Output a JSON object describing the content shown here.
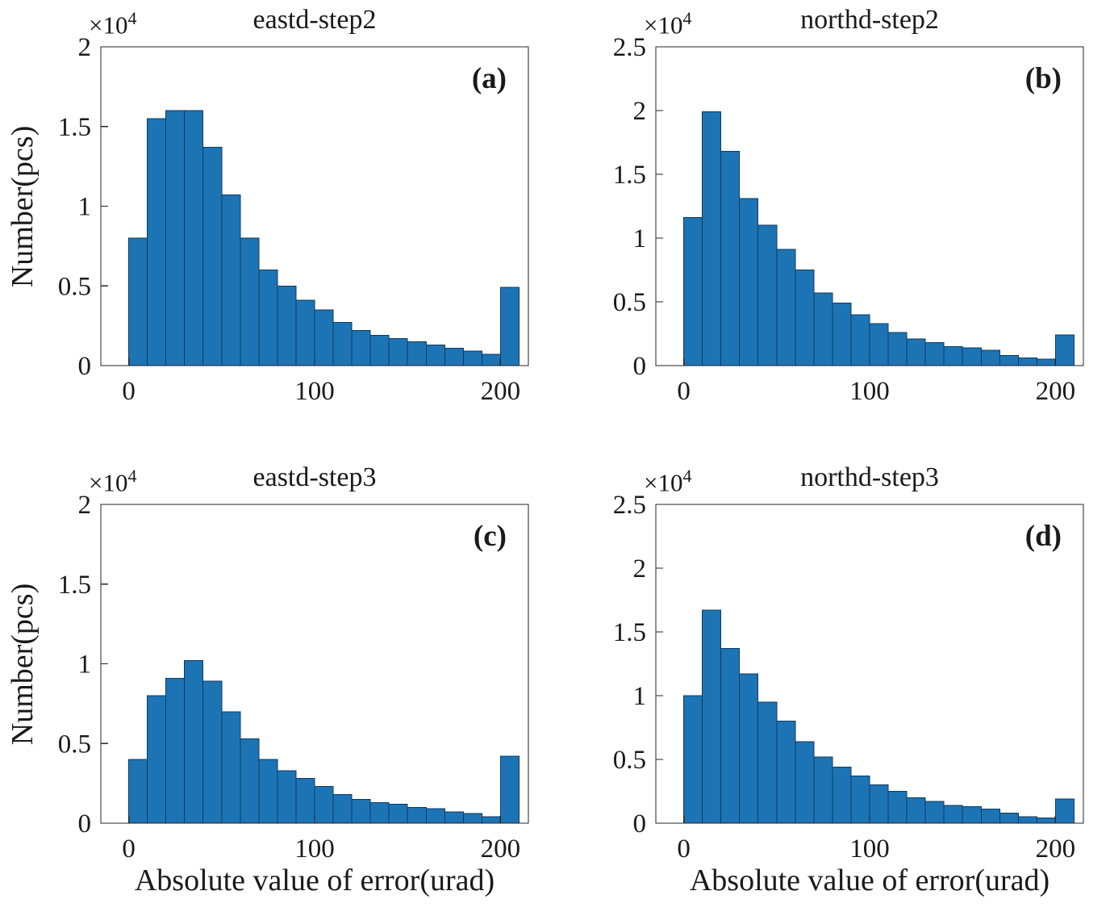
{
  "figure": {
    "background": "#ffffff",
    "bar_fill_color": "#1D74B5",
    "bar_edge_color": "#0E3A5F",
    "axis_color": "#262626"
  },
  "chart_data": [
    {
      "type": "bar",
      "panel": "top-left",
      "title": "eastd-step2",
      "annotation": "(a)",
      "xlabel": "",
      "ylabel": "Number(pcs)",
      "y_scale_base": "×10",
      "y_scale_exp": "4",
      "bin_start": 0,
      "bin_width": 10,
      "xlim": [
        -15,
        215
      ],
      "ylim": [
        0,
        20000
      ],
      "xtick_values": [
        0,
        100,
        200
      ],
      "xtick_labels": [
        "0",
        "100",
        "200"
      ],
      "ytick_values": [
        0,
        5000,
        10000,
        15000,
        20000
      ],
      "ytick_labels": [
        "0",
        "0.5",
        "1",
        "1.5",
        "2"
      ],
      "grid": false,
      "legend": null,
      "values": [
        8000,
        15500,
        16000,
        16000,
        13700,
        10700,
        8000,
        6000,
        5000,
        4100,
        3500,
        2700,
        2200,
        1900,
        1700,
        1500,
        1300,
        1100,
        900,
        700,
        4900
      ]
    },
    {
      "type": "bar",
      "panel": "top-right",
      "title": "northd-step2",
      "annotation": "(b)",
      "xlabel": "",
      "ylabel": "",
      "y_scale_base": "×10",
      "y_scale_exp": "4",
      "bin_start": 0,
      "bin_width": 10,
      "xlim": [
        -15,
        215
      ],
      "ylim": [
        0,
        25000
      ],
      "xtick_values": [
        0,
        100,
        200
      ],
      "xtick_labels": [
        "0",
        "100",
        "200"
      ],
      "ytick_values": [
        0,
        5000,
        10000,
        15000,
        20000,
        25000
      ],
      "ytick_labels": [
        "0",
        "0.5",
        "1",
        "1.5",
        "2",
        "2.5"
      ],
      "grid": false,
      "legend": null,
      "values": [
        11600,
        19900,
        16800,
        13100,
        11000,
        9100,
        7500,
        5700,
        4900,
        4000,
        3300,
        2600,
        2100,
        1800,
        1500,
        1400,
        1200,
        800,
        600,
        500,
        2400
      ]
    },
    {
      "type": "bar",
      "panel": "bottom-left",
      "title": "eastd-step3",
      "annotation": "(c)",
      "xlabel": "Absolute value of error(urad)",
      "ylabel": "Number(pcs)",
      "y_scale_base": "×10",
      "y_scale_exp": "4",
      "bin_start": 0,
      "bin_width": 10,
      "xlim": [
        -15,
        215
      ],
      "ylim": [
        0,
        20000
      ],
      "xtick_values": [
        0,
        100,
        200
      ],
      "xtick_labels": [
        "0",
        "100",
        "200"
      ],
      "ytick_values": [
        0,
        5000,
        10000,
        15000,
        20000
      ],
      "ytick_labels": [
        "0",
        "0.5",
        "1",
        "1.5",
        "2"
      ],
      "grid": false,
      "legend": null,
      "values": [
        4000,
        8000,
        9100,
        10200,
        8900,
        7000,
        5300,
        4000,
        3300,
        2800,
        2300,
        1800,
        1500,
        1300,
        1200,
        1000,
        900,
        700,
        600,
        400,
        4200
      ]
    },
    {
      "type": "bar",
      "panel": "bottom-right",
      "title": "northd-step3",
      "annotation": "(d)",
      "xlabel": "Absolute value of error(urad)",
      "ylabel": "",
      "y_scale_base": "×10",
      "y_scale_exp": "4",
      "bin_start": 0,
      "bin_width": 10,
      "xlim": [
        -15,
        215
      ],
      "ylim": [
        0,
        25000
      ],
      "xtick_values": [
        0,
        100,
        200
      ],
      "xtick_labels": [
        "0",
        "100",
        "200"
      ],
      "ytick_values": [
        0,
        5000,
        10000,
        15000,
        20000,
        25000
      ],
      "ytick_labels": [
        "0",
        "0.5",
        "1",
        "1.5",
        "2",
        "2.5"
      ],
      "grid": false,
      "legend": null,
      "values": [
        10000,
        16700,
        13700,
        11700,
        9500,
        8000,
        6400,
        5200,
        4400,
        3700,
        3000,
        2500,
        2000,
        1700,
        1400,
        1300,
        1100,
        800,
        500,
        400,
        1900
      ]
    }
  ]
}
